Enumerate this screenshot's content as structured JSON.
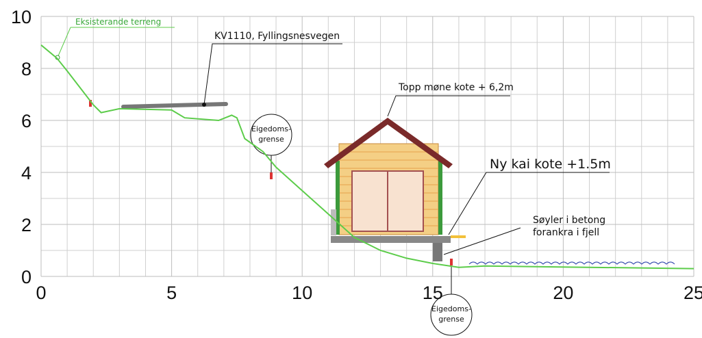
{
  "chart_data": {
    "type": "line",
    "xlim": [
      0,
      25
    ],
    "ylim": [
      0,
      10
    ],
    "xticks": [
      0,
      5,
      10,
      15,
      20,
      25
    ],
    "yticks": [
      0,
      2,
      4,
      6,
      8,
      10
    ],
    "xgrid": [
      1,
      2,
      3,
      4,
      6,
      7,
      8,
      9,
      11,
      12,
      13,
      14,
      16,
      17,
      18,
      19,
      21,
      22,
      23,
      24
    ],
    "ygrid": [
      1,
      3,
      5,
      7,
      9
    ],
    "grid": true,
    "series": [
      {
        "name": "Eksisterande terreng",
        "color": "#5ccc4a",
        "x": [
          0,
          0.6,
          1,
          2,
          2.3,
          3,
          5,
          5.5,
          6.8,
          7.3,
          7.5,
          7.8,
          8.5,
          9,
          10,
          11,
          12,
          13,
          14,
          15,
          16,
          17,
          25
        ],
        "values": [
          8.9,
          8.4,
          7.9,
          6.6,
          6.3,
          6.45,
          6.4,
          6.1,
          6.0,
          6.2,
          6.1,
          5.3,
          4.8,
          4.2,
          3.3,
          2.4,
          1.5,
          1.0,
          0.7,
          0.5,
          0.35,
          0.4,
          0.3
        ]
      }
    ],
    "annotations": {
      "road": "KV1110, Fyllingsnesvegen",
      "ridge": "Topp møne kote + 6,2m",
      "quay": "Ny kai kote +1.5m",
      "pillars": [
        "Søyler i betong",
        "forankra i fjell"
      ],
      "boundary": [
        "Eigedoms-",
        "grense"
      ]
    }
  }
}
